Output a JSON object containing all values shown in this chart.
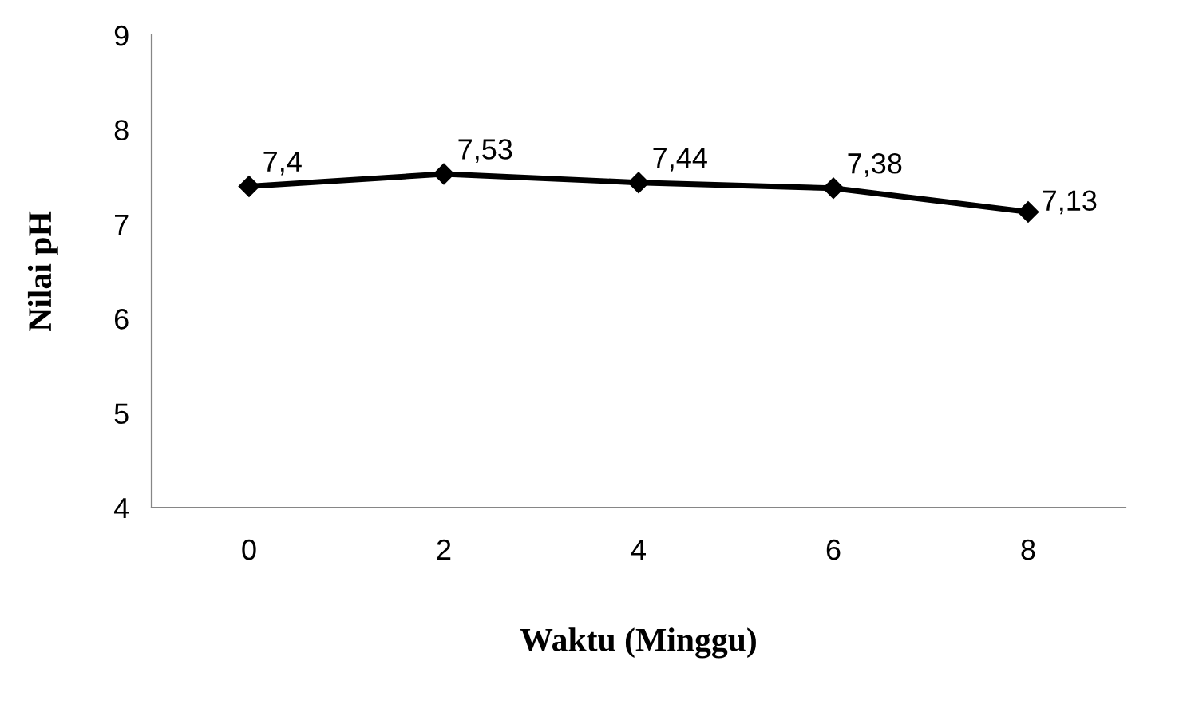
{
  "chart_data": {
    "type": "line",
    "xlabel": "Waktu (Minggu)",
    "ylabel": "Nilai pH",
    "categories": [
      "0",
      "2",
      "4",
      "6",
      "8"
    ],
    "series": [
      {
        "color": "#000000",
        "values": [
          7.4,
          7.53,
          7.44,
          7.38,
          7.13
        ],
        "value_labels": [
          "7,4",
          "7,53",
          "7,44",
          "7,38",
          "7,13"
        ]
      }
    ],
    "ylim": [
      4,
      9
    ],
    "yticks": [
      4,
      5,
      6,
      7,
      8,
      9
    ],
    "grid": false,
    "legend": false,
    "marker": "diamond",
    "line_style": "solid"
  }
}
